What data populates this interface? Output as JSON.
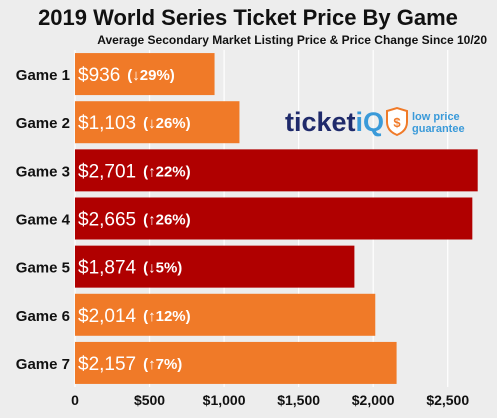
{
  "chart_data": {
    "type": "bar",
    "orientation": "horizontal",
    "title": "2019 World Series Ticket Price By Game",
    "subtitle": "Average Secondary Market Listing Price & Price Change Since 10/20",
    "categories": [
      "Game 1",
      "Game 2",
      "Game 3",
      "Game 4",
      "Game 5",
      "Game 6",
      "Game 7"
    ],
    "values": [
      936,
      1103,
      2701,
      2665,
      1874,
      2014,
      2157
    ],
    "value_labels": [
      "$936",
      "$1,103",
      "$2,701",
      "$2,665",
      "$1,874",
      "$2,014",
      "$2,157"
    ],
    "change_labels": [
      "(↓29%)",
      "(↓26%)",
      "(↑22%)",
      "(↑26%)",
      "(↓5%)",
      "(↑12%)",
      "(↑7%)"
    ],
    "bar_colors": [
      "#f07a28",
      "#f07a28",
      "#b00000",
      "#b00000",
      "#b00000",
      "#f07a28",
      "#f07a28"
    ],
    "xlim": [
      0,
      2750
    ],
    "x_ticks": [
      0,
      500,
      1000,
      1500,
      2000,
      2500
    ],
    "x_tick_labels": [
      "0",
      "$500",
      "$1,000",
      "$1,500",
      "$2,000",
      "$2,500"
    ],
    "grid": true,
    "background": "#ededed"
  },
  "logo": {
    "brand_ticket": "ticket",
    "brand_iq": "iQ",
    "tag_line1": "low price",
    "tag_line2": "guarantee",
    "colors": {
      "dark": "#1f2a6b",
      "light": "#3a9ad9",
      "accent": "#f07a28"
    },
    "icon": "shield-dollar-icon"
  }
}
